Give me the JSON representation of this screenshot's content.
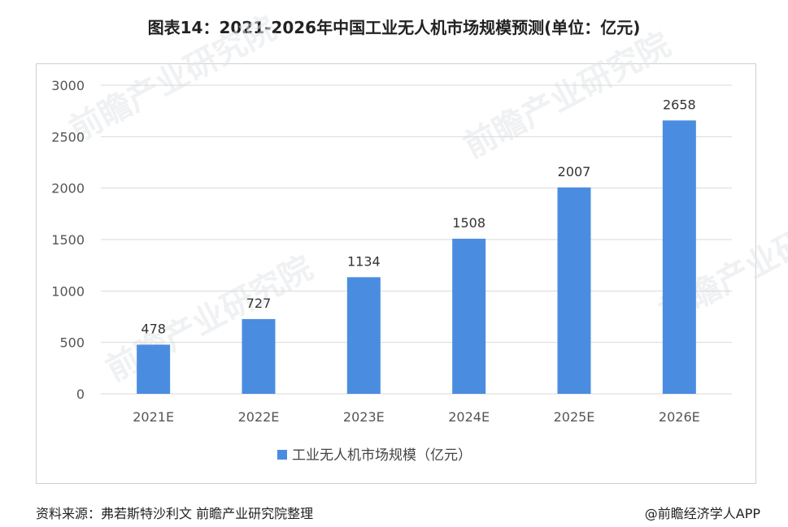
{
  "title": "图表14：2021-2026年中国工业无人机市场规模预测(单位：亿元)",
  "footer": {
    "source": "资料来源：弗若斯特沙利文 前瞻产业研究院整理",
    "credit": "@前瞻经济学人APP"
  },
  "watermark": "前瞻产业研究院",
  "colors": {
    "bar": "#4a8de0",
    "grid": "#d9d9d9"
  },
  "chart_data": {
    "type": "bar",
    "title": "图表14：2021-2026年中国工业无人机市场规模预测(单位：亿元)",
    "categories": [
      "2021E",
      "2022E",
      "2023E",
      "2024E",
      "2025E",
      "2026E"
    ],
    "series": [
      {
        "name": "工业无人机市场规模（亿元）",
        "values": [
          478,
          727,
          1134,
          1508,
          2007,
          2658
        ]
      }
    ],
    "ylim": [
      0,
      3000
    ],
    "yticks": [
      0,
      500,
      1000,
      1500,
      2000,
      2500,
      3000
    ],
    "grid": true,
    "legend": "bottom"
  }
}
